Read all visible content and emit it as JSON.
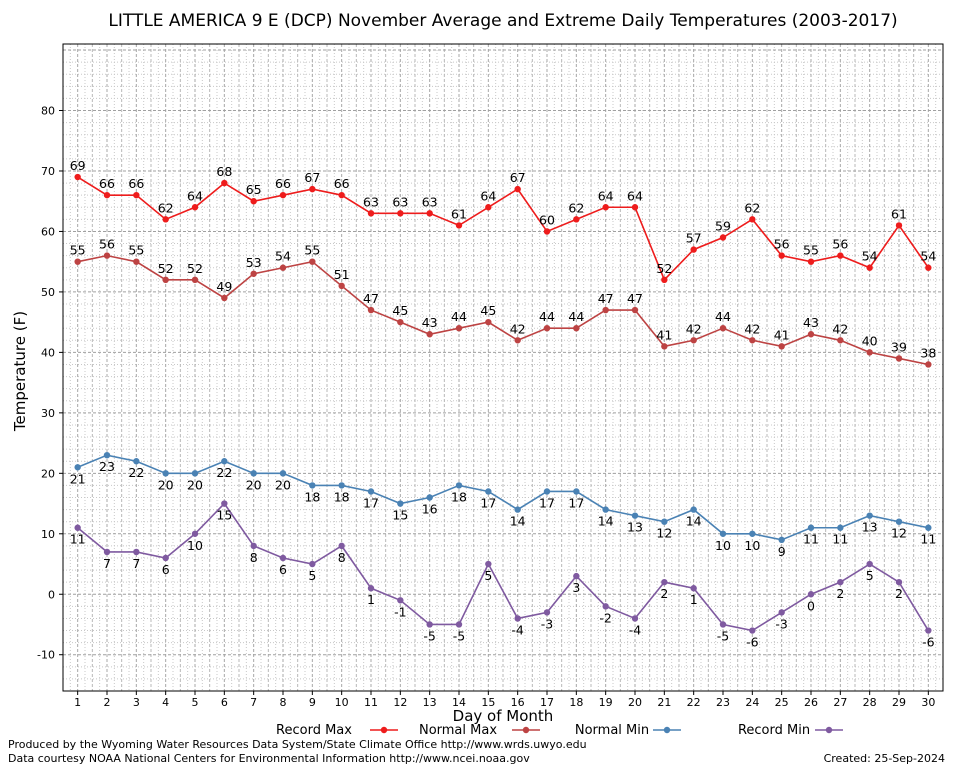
{
  "chart_data": {
    "type": "line",
    "title": "LITTLE AMERICA 9 E (DCP) November Average and Extreme Daily Temperatures (2003-2017)",
    "xlabel": "Day of Month",
    "ylabel": "Temperature (F)",
    "xlim": [
      0.5,
      30.5
    ],
    "ylim": [
      -16,
      91
    ],
    "yticks": [
      -10,
      0,
      10,
      20,
      30,
      40,
      50,
      60,
      70,
      80
    ],
    "x": [
      1,
      2,
      3,
      4,
      5,
      6,
      7,
      8,
      9,
      10,
      11,
      12,
      13,
      14,
      15,
      16,
      17,
      18,
      19,
      20,
      21,
      22,
      23,
      24,
      25,
      26,
      27,
      28,
      29,
      30
    ],
    "grid": true,
    "legend_position": "bottom",
    "series": [
      {
        "name": "Record Max",
        "color": "#ee1c1c",
        "label_pos": "above",
        "values": [
          69,
          66,
          66,
          62,
          64,
          68,
          65,
          66,
          67,
          66,
          63,
          63,
          63,
          61,
          64,
          67,
          60,
          62,
          64,
          64,
          52,
          57,
          59,
          62,
          56,
          55,
          56,
          54,
          61,
          54
        ]
      },
      {
        "name": "Normal Max",
        "color": "#bd4343",
        "label_pos": "above",
        "values": [
          55,
          56,
          55,
          52,
          52,
          49,
          53,
          54,
          55,
          51,
          47,
          45,
          43,
          44,
          45,
          42,
          44,
          44,
          47,
          47,
          41,
          42,
          44,
          42,
          41,
          43,
          42,
          40,
          39,
          38
        ]
      },
      {
        "name": "Normal Min",
        "color": "#4a82b4",
        "label_pos": "below",
        "values": [
          21,
          23,
          22,
          20,
          20,
          22,
          20,
          20,
          18,
          18,
          17,
          15,
          16,
          18,
          17,
          14,
          17,
          17,
          14,
          13,
          12,
          14,
          10,
          10,
          9,
          11,
          11,
          13,
          12,
          11
        ]
      },
      {
        "name": "Record Min",
        "color": "#7f5aa0",
        "label_pos": "below",
        "values": [
          11,
          7,
          7,
          6,
          10,
          15,
          8,
          6,
          5,
          8,
          1,
          -1,
          -5,
          -5,
          5,
          -4,
          -3,
          3,
          -2,
          -4,
          2,
          1,
          -5,
          -6,
          -3,
          0,
          2,
          5,
          2,
          -6
        ]
      }
    ],
    "footer_left": [
      "Produced by the Wyoming Water Resources Data System/State Climate Office http://www.wrds.uwyo.edu",
      "Data courtesy NOAA National Centers for Environmental Information http://www.ncei.noaa.gov"
    ],
    "footer_right": "Created:  25-Sep-2024"
  }
}
